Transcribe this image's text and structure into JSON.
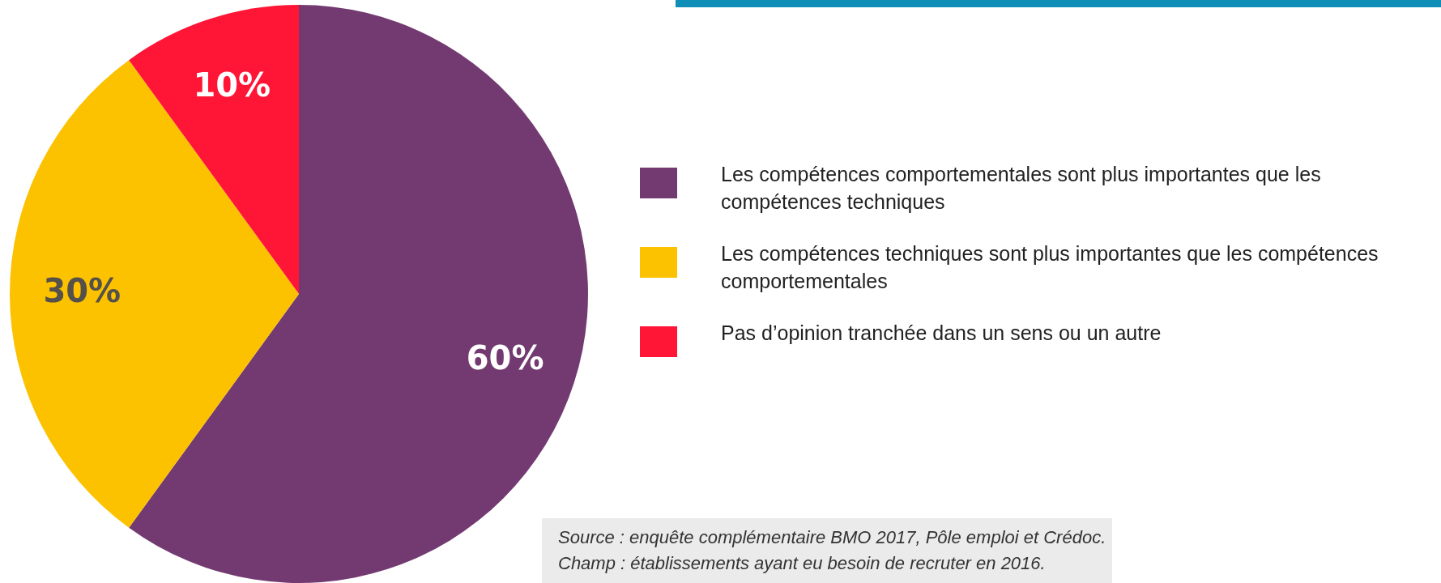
{
  "chart_data": {
    "type": "pie",
    "categories": [
      "Les compétences comportementales sont plus importantes que les compétences techniques",
      "Les compétences techniques sont plus importantes que les compétences comportementales",
      "Pas d’opinion tranchée dans un sens ou un autre"
    ],
    "values": [
      60,
      30,
      10
    ],
    "colors": [
      "#733a72",
      "#fcc200",
      "#ff1535"
    ],
    "value_labels": [
      "60%",
      "30%",
      "10%"
    ],
    "legend": "right",
    "annotations": [
      "Source : enquête complémentaire BMO 2017, Pôle emploi et Crédoc.",
      "Champ : établissements ayant eu besoin de recruter en 2016."
    ]
  }
}
